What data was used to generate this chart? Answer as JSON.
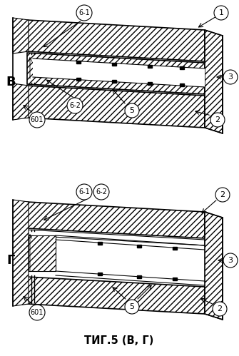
{
  "title": "ΤИГ.5 (В, Г)",
  "label_B": "В",
  "label_G": "Г",
  "bg_color": "#ffffff",
  "fig_width": 3.35,
  "fig_height": 4.99,
  "dpi": 100
}
